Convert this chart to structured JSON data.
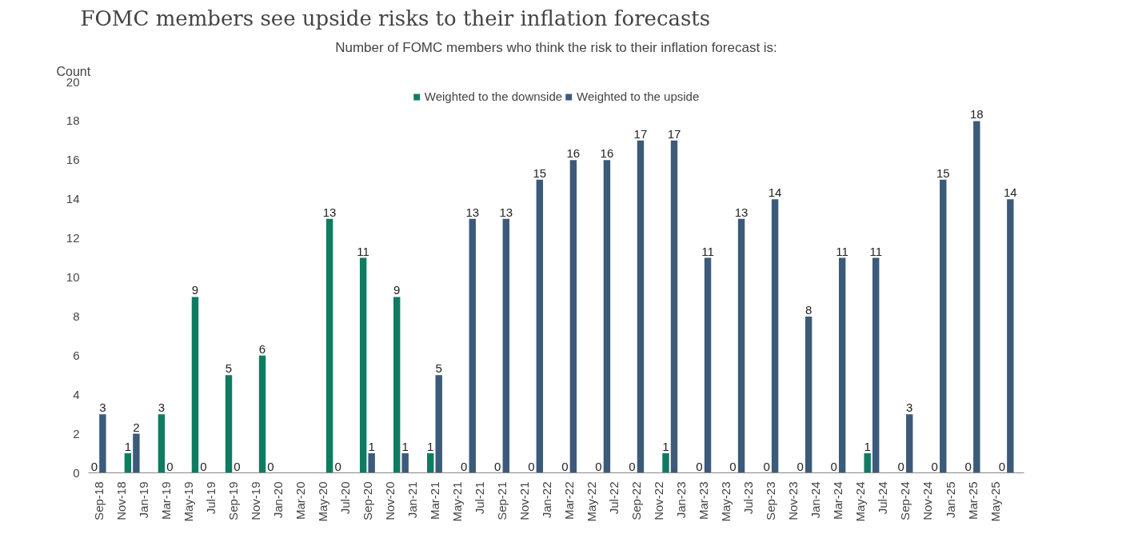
{
  "chart_data": {
    "type": "bar",
    "title": "FOMC members see upside risks to their inflation forecasts",
    "subtitle": "Number of FOMC members who think the risk to their inflation forecast is:",
    "ylabel": "Count",
    "categories": [
      "Sep-18",
      null,
      "Nov-18",
      null,
      "Jan-19",
      null,
      "Mar-19",
      null,
      "May-19",
      null,
      "Jul-19",
      null,
      "Sep-19",
      null,
      "Nov-19",
      null,
      "Jan-20",
      null,
      "Mar-20",
      null,
      "May-20",
      null,
      "Jul-20",
      null,
      "Sep-20",
      null,
      "Nov-20",
      null,
      "Jan-21",
      null,
      "Mar-21",
      null,
      "May-21",
      null,
      "Jul-21",
      null,
      "Sep-21",
      null,
      "Nov-21",
      null,
      "Jan-22",
      null,
      "Mar-22",
      null,
      "May-22",
      null,
      "Jul-22",
      null,
      "Sep-22",
      null,
      "Nov-22",
      null,
      "Jan-23",
      null,
      "Mar-23",
      null,
      "May-23",
      null,
      "Jul-23",
      null,
      "Sep-23",
      null,
      "Nov-23",
      null,
      "Jan-24",
      null,
      "Mar-24",
      null,
      "May-24",
      null,
      "Jul-24",
      null,
      "Sep-24",
      null,
      "Nov-24",
      null,
      "Jan-25",
      null,
      "Mar-25",
      null,
      "May-25",
      null
    ],
    "series": [
      {
        "name": "Weighted to the downside",
        "color": "#0e7c61",
        "values": [
          0,
          null,
          null,
          1,
          null,
          null,
          3,
          null,
          null,
          9,
          null,
          null,
          5,
          null,
          null,
          6,
          null,
          null,
          null,
          null,
          null,
          13,
          null,
          null,
          11,
          null,
          null,
          9,
          null,
          null,
          1,
          null,
          null,
          0,
          null,
          null,
          0,
          null,
          null,
          0,
          null,
          null,
          0,
          null,
          null,
          0,
          null,
          null,
          0,
          null,
          null,
          1,
          null,
          null,
          0,
          null,
          null,
          0,
          null,
          null,
          0,
          null,
          null,
          0,
          null,
          null,
          0,
          null,
          null,
          1,
          null,
          null,
          0,
          null,
          null,
          0,
          null,
          null,
          0,
          null,
          null,
          0
        ]
      },
      {
        "name": "Weighted to the upside",
        "color": "#3c5a7a",
        "values": [
          3,
          null,
          null,
          2,
          null,
          null,
          0,
          null,
          null,
          0,
          null,
          null,
          0,
          null,
          null,
          0,
          null,
          null,
          null,
          null,
          null,
          0,
          null,
          null,
          1,
          null,
          null,
          1,
          null,
          null,
          5,
          null,
          null,
          13,
          null,
          null,
          13,
          null,
          null,
          15,
          null,
          null,
          16,
          null,
          null,
          16,
          null,
          null,
          17,
          null,
          null,
          17,
          null,
          null,
          11,
          null,
          null,
          13,
          null,
          null,
          14,
          null,
          null,
          8,
          null,
          null,
          11,
          null,
          null,
          11,
          null,
          null,
          3,
          null,
          null,
          15,
          null,
          null,
          18,
          null,
          null,
          14
        ]
      }
    ],
    "ylim": [
      0,
      20
    ],
    "yticks": [
      0,
      2,
      4,
      6,
      8,
      10,
      12,
      14,
      16,
      18,
      20
    ],
    "data_labels": true,
    "legend": "top",
    "grid": false
  }
}
